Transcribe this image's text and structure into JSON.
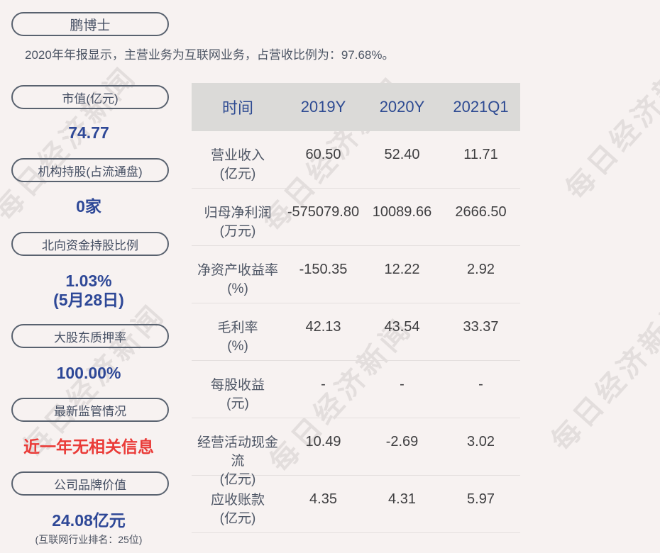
{
  "page": {
    "company_name": "鹏博士",
    "description": "2020年年报显示，主营业务为互联网业务，占营收比例为：97.68%。",
    "watermark_text": "每日经济新闻"
  },
  "colors": {
    "background": "#f7f2f1",
    "pill_border": "#59626f",
    "pill_text": "#454f63",
    "value_blue": "#2e4897",
    "alert_red": "#ea3b38",
    "table_header_bg": "#dbdad8",
    "table_header_text": "#2d4a92",
    "table_value_text": "#3e3e40",
    "table_label_text": "#4e5665"
  },
  "sidebar": {
    "items": [
      {
        "label": "市值(亿元)",
        "value_lines": [
          "74.77"
        ],
        "value_color": "blue"
      },
      {
        "label": "机构持股(占流通盘)",
        "value_lines": [
          "0家"
        ],
        "value_color": "blue"
      },
      {
        "label": "北向资金持股比例",
        "value_lines": [
          "1.03%",
          "(5月28日)"
        ],
        "value_color": "blue"
      },
      {
        "label": "大股东质押率",
        "value_lines": [
          "100.00%"
        ],
        "value_color": "blue"
      },
      {
        "label": "最新监管情况",
        "value_lines": [
          "近一年无相关信息"
        ],
        "value_color": "red"
      },
      {
        "label": "公司品牌价值",
        "value_lines": [
          "24.08亿元"
        ],
        "note": "(互联网行业排名：25位)",
        "value_color": "blue"
      }
    ]
  },
  "table": {
    "columns": [
      "时间",
      "2019Y",
      "2020Y",
      "2021Q1"
    ],
    "rows": [
      {
        "name": "营业收入",
        "unit": "(亿元)",
        "values": [
          "60.50",
          "52.40",
          "11.71"
        ]
      },
      {
        "name": "归母净利润",
        "unit": "(万元)",
        "values": [
          "-575079.80",
          "10089.66",
          "2666.50"
        ]
      },
      {
        "name": "净资产收益率",
        "unit": "(%)",
        "values": [
          "-150.35",
          "12.22",
          "2.92"
        ]
      },
      {
        "name": "毛利率",
        "unit": "(%)",
        "values": [
          "42.13",
          "43.54",
          "33.37"
        ]
      },
      {
        "name": "每股收益",
        "unit": "(元)",
        "values": [
          "-",
          "-",
          "-"
        ]
      },
      {
        "name": "经营活动现金流",
        "unit": "(亿元)",
        "values": [
          "10.49",
          "-2.69",
          "3.02"
        ]
      },
      {
        "name": "应收账款",
        "unit": "(亿元)",
        "values": [
          "4.35",
          "4.31",
          "5.97"
        ]
      }
    ]
  }
}
